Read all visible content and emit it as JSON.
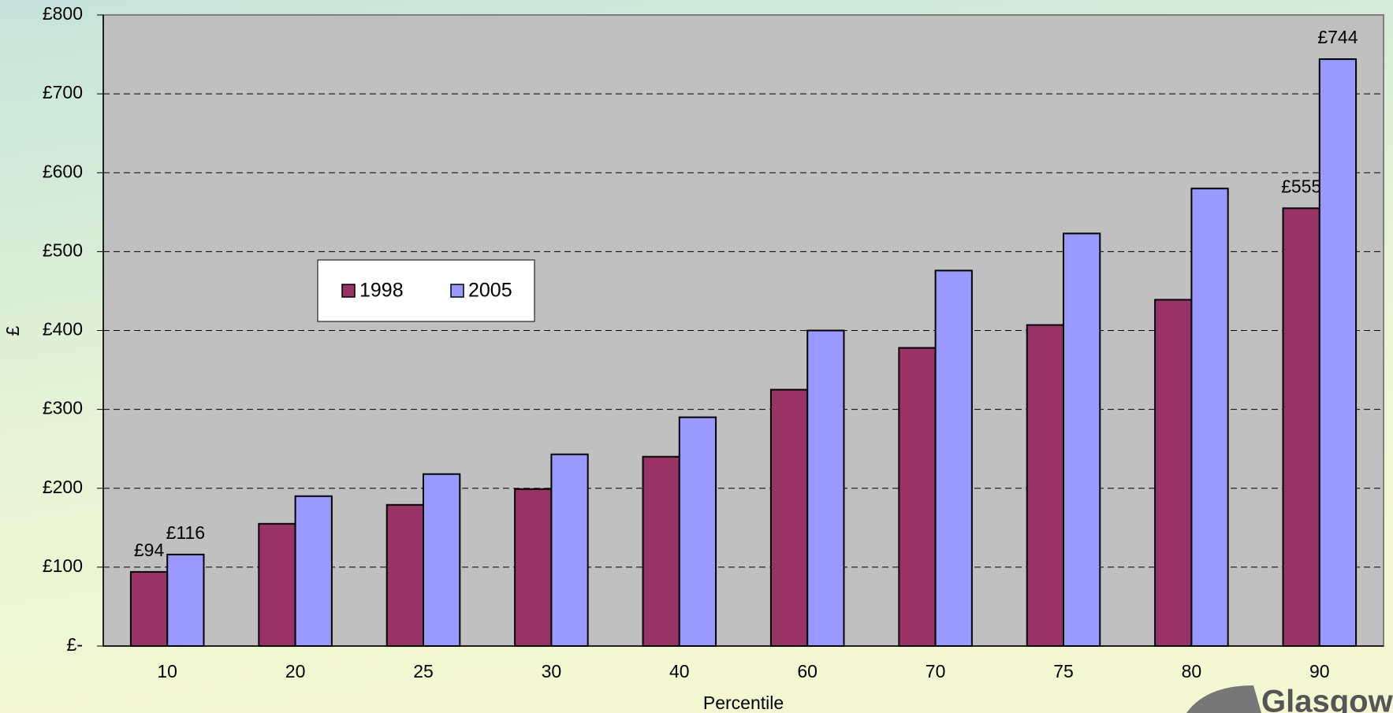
{
  "chart_data": {
    "type": "bar",
    "x_label": "Percentile",
    "y_label": "£",
    "categories": [
      "10",
      "20",
      "25",
      "30",
      "40",
      "60",
      "70",
      "75",
      "80",
      "90"
    ],
    "series": [
      {
        "name": "1998",
        "color": "#993366",
        "values": [
          94,
          155,
          179,
          199,
          240,
          325,
          378,
          407,
          439,
          555
        ],
        "value_labels": [
          "£94",
          null,
          null,
          null,
          null,
          null,
          null,
          null,
          null,
          "£555"
        ]
      },
      {
        "name": "2005",
        "color": "#9999ff",
        "values": [
          116,
          190,
          218,
          243,
          290,
          400,
          476,
          523,
          580,
          744
        ],
        "value_labels": [
          "£116",
          null,
          null,
          null,
          null,
          null,
          null,
          null,
          null,
          "£744"
        ]
      }
    ],
    "ylim": [
      0,
      800
    ],
    "yticks": [
      {
        "value": 0,
        "label": "£-"
      },
      {
        "value": 100,
        "label": "£100"
      },
      {
        "value": 200,
        "label": "£200"
      },
      {
        "value": 300,
        "label": "£300"
      },
      {
        "value": 400,
        "label": "£400"
      },
      {
        "value": 500,
        "label": "£500"
      },
      {
        "value": 600,
        "label": "£600"
      },
      {
        "value": 700,
        "label": "£700"
      },
      {
        "value": 800,
        "label": "£800"
      }
    ],
    "grid": true,
    "logo_text": "Glasgow"
  }
}
